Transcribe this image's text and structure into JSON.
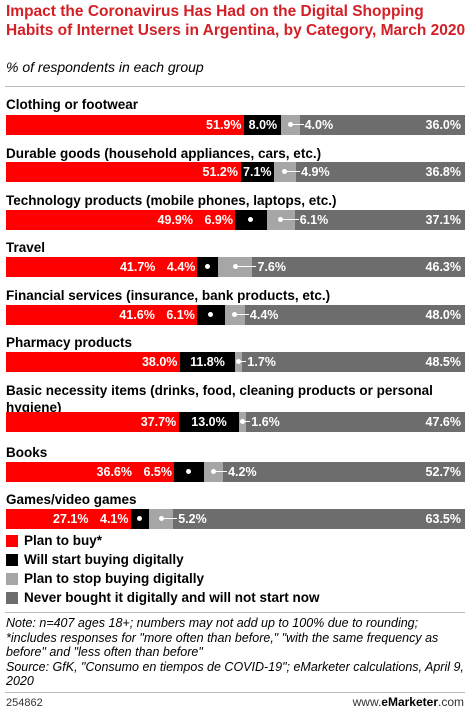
{
  "header": {
    "title": "Impact the Coronavirus Has Had on the Digital Shopping Habits of Internet Users in Argentina, by Category, March 2020",
    "subtitle": "% of respondents in each group"
  },
  "colors": {
    "plan_to_buy": "#ff0000",
    "will_start": "#000000",
    "plan_to_stop": "#a6a6a6",
    "never_bought": "#6d6d6d",
    "title": "#d32027"
  },
  "chart_data": {
    "type": "bar",
    "orientation": "horizontal",
    "stacked": true,
    "categories": [
      "Clothing or footwear",
      "Durable goods (household appliances, cars, etc.)",
      "Technology products (mobile phones, laptops, etc.)",
      "Travel",
      "Financial services (insurance, bank products, etc.)",
      "Pharmacy products",
      "Basic necessity items (drinks, food, cleaning products or personal hygiene)",
      "Books",
      "Games/video games"
    ],
    "series": [
      {
        "name": "Plan to buy*",
        "values": [
          51.9,
          51.2,
          49.9,
          41.7,
          41.6,
          38.0,
          37.7,
          36.6,
          27.1
        ]
      },
      {
        "name": "Will start buying digitally",
        "values": [
          8.0,
          7.1,
          6.9,
          4.4,
          6.1,
          11.8,
          13.0,
          6.5,
          4.1
        ]
      },
      {
        "name": "Plan to stop buying digitally",
        "values": [
          4.0,
          4.9,
          6.1,
          7.6,
          4.4,
          1.7,
          1.6,
          4.2,
          5.2
        ]
      },
      {
        "name": "Never bought it digitally and will not start now",
        "values": [
          36.0,
          36.8,
          37.1,
          46.3,
          48.0,
          48.5,
          47.6,
          52.7,
          63.5
        ]
      }
    ],
    "value_labels": [
      [
        "51.9%",
        "8.0%",
        "4.0%",
        "36.0%"
      ],
      [
        "51.2%",
        "7.1%",
        "4.9%",
        "36.8%"
      ],
      [
        "49.9%",
        "6.9%",
        "6.1%",
        "37.1%"
      ],
      [
        "41.7%",
        "4.4%",
        "7.6%",
        "46.3%"
      ],
      [
        "41.6%",
        "6.1%",
        "4.4%",
        "48.0%"
      ],
      [
        "38.0%",
        "11.8%",
        "1.7%",
        "48.5%"
      ],
      [
        "37.7%",
        "13.0%",
        "1.6%",
        "47.6%"
      ],
      [
        "36.6%",
        "6.5%",
        "4.2%",
        "52.7%"
      ],
      [
        "27.1%",
        "4.1%",
        "5.2%",
        "63.5%"
      ]
    ],
    "xlim": [
      0,
      100
    ],
    "legend_position": "bottom"
  },
  "footer": {
    "note": "Note: n=407 ages 18+; numbers may not add up to 100% due to rounding; *includes responses for \"more often than before,\" \"with the same frequency as before\" and \"less often than before\"",
    "source": "Source: GfK, \"Consumo en tiempos de COVID-19\"; eMarketer calculations, April 9, 2020",
    "id": "254862",
    "brand_prefix": "www.",
    "brand_name": "eMarketer",
    "brand_suffix": ".com"
  }
}
